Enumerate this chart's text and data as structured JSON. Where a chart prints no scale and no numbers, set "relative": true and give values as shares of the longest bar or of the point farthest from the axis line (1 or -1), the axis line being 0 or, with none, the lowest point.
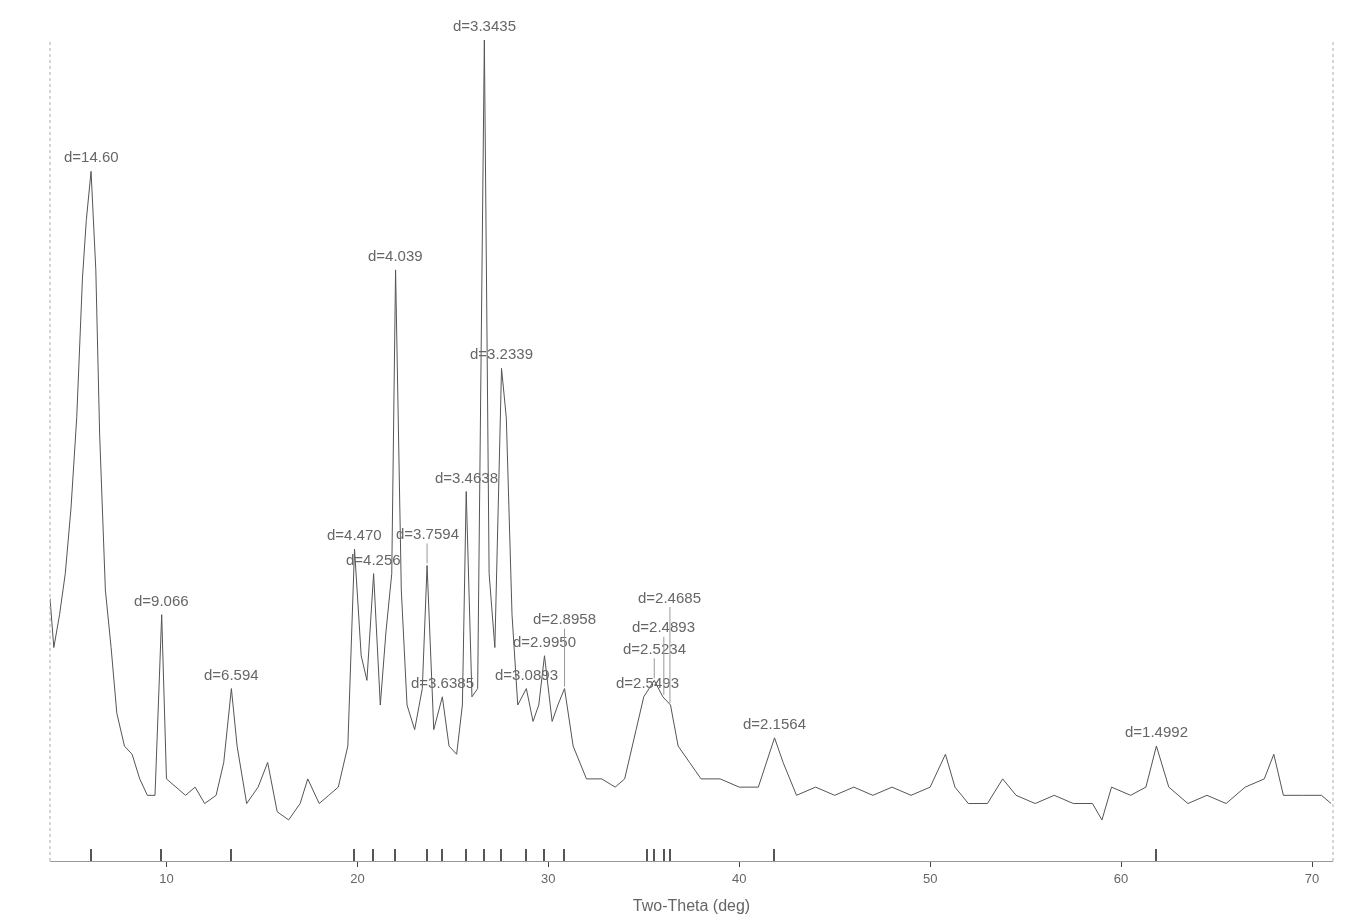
{
  "chart_data": {
    "type": "line",
    "relative": true,
    "xlabel": "Two-Theta (deg)",
    "xlim": [
      3.9,
      71.1
    ],
    "xticks": [
      10,
      20,
      30,
      40,
      50,
      60,
      70
    ],
    "marker": "none",
    "line_style": "solid",
    "series": [
      {
        "color": "#555555",
        "x": [
          3.9,
          4.1,
          4.4,
          4.7,
          5.0,
          5.3,
          5.6,
          5.8,
          6.05,
          6.3,
          6.5,
          6.8,
          7.1,
          7.4,
          7.8,
          8.2,
          8.6,
          9.0,
          9.4,
          9.75,
          10.0,
          10.5,
          11.0,
          11.5,
          12.0,
          12.6,
          13.0,
          13.4,
          13.7,
          14.2,
          14.8,
          15.3,
          15.8,
          16.4,
          17.0,
          17.4,
          18.0,
          18.5,
          19.0,
          19.5,
          19.85,
          20.2,
          20.5,
          20.85,
          21.2,
          21.5,
          21.8,
          22.0,
          22.3,
          22.6,
          23.0,
          23.4,
          23.65,
          24.0,
          24.45,
          24.8,
          25.2,
          25.5,
          25.7,
          26.0,
          26.3,
          26.65,
          26.9,
          27.2,
          27.55,
          27.8,
          28.1,
          28.4,
          28.85,
          29.2,
          29.5,
          29.8,
          30.2,
          30.5,
          30.85,
          31.3,
          32.0,
          32.8,
          33.5,
          34.0,
          34.6,
          35.0,
          35.55,
          36.0,
          36.4,
          36.8,
          37.4,
          38.0,
          39.0,
          40.0,
          41.0,
          41.85,
          42.3,
          43.0,
          44.0,
          45.0,
          46.0,
          47.0,
          48.0,
          49.0,
          50.0,
          50.8,
          51.3,
          52.0,
          53.0,
          53.8,
          54.5,
          55.5,
          56.5,
          57.5,
          58.5,
          59.0,
          59.5,
          60.5,
          61.3,
          61.85,
          62.5,
          63.5,
          64.5,
          65.5,
          66.5,
          67.5,
          68.0,
          68.5,
          69.5,
          70.5,
          71.0
        ],
        "values": [
          0.32,
          0.26,
          0.3,
          0.35,
          0.43,
          0.54,
          0.71,
          0.78,
          0.84,
          0.72,
          0.52,
          0.33,
          0.26,
          0.18,
          0.14,
          0.13,
          0.1,
          0.08,
          0.08,
          0.3,
          0.1,
          0.09,
          0.08,
          0.09,
          0.07,
          0.08,
          0.12,
          0.21,
          0.14,
          0.07,
          0.09,
          0.12,
          0.06,
          0.05,
          0.07,
          0.1,
          0.07,
          0.08,
          0.09,
          0.14,
          0.38,
          0.25,
          0.22,
          0.35,
          0.19,
          0.28,
          0.35,
          0.72,
          0.33,
          0.19,
          0.16,
          0.21,
          0.36,
          0.16,
          0.2,
          0.14,
          0.13,
          0.19,
          0.45,
          0.2,
          0.21,
          1.0,
          0.35,
          0.26,
          0.6,
          0.54,
          0.3,
          0.19,
          0.21,
          0.17,
          0.19,
          0.25,
          0.17,
          0.19,
          0.21,
          0.14,
          0.1,
          0.1,
          0.09,
          0.1,
          0.16,
          0.2,
          0.22,
          0.2,
          0.19,
          0.14,
          0.12,
          0.1,
          0.1,
          0.09,
          0.09,
          0.15,
          0.12,
          0.08,
          0.09,
          0.08,
          0.09,
          0.08,
          0.09,
          0.08,
          0.09,
          0.13,
          0.09,
          0.07,
          0.07,
          0.1,
          0.08,
          0.07,
          0.08,
          0.07,
          0.07,
          0.05,
          0.09,
          0.08,
          0.09,
          0.14,
          0.09,
          0.07,
          0.08,
          0.07,
          0.09,
          0.1,
          0.13,
          0.08,
          0.08,
          0.08,
          0.07
        ]
      },
      {
        "type": "bar",
        "color": "#555555",
        "x": [
          6.05,
          9.75,
          13.4,
          19.85,
          20.85,
          22.0,
          23.65,
          24.45,
          25.7,
          26.65,
          27.55,
          28.85,
          29.8,
          30.85,
          35.18,
          35.55,
          36.05,
          36.37,
          41.85,
          61.85
        ],
        "values": [
          0.015,
          0.015,
          0.015,
          0.015,
          0.015,
          0.015,
          0.015,
          0.015,
          0.015,
          0.015,
          0.015,
          0.015,
          0.015,
          0.015,
          0.015,
          0.015,
          0.015,
          0.015,
          0.015,
          0.015
        ]
      }
    ],
    "annotations": [
      {
        "text": "d=14.60",
        "x": 6.05,
        "y": 0.84
      },
      {
        "text": "d=9.066",
        "x": 9.75,
        "y": 0.3
      },
      {
        "text": "d=6.594",
        "x": 13.4,
        "y": 0.21
      },
      {
        "text": "d=4.470",
        "x": 19.85,
        "y": 0.38
      },
      {
        "text": "d=4.256",
        "x": 20.85,
        "y": 0.35
      },
      {
        "text": "d=4.039",
        "x": 22.0,
        "y": 0.72
      },
      {
        "text": "d=3.7594",
        "x": 23.65,
        "y": 0.36
      },
      {
        "text": "d=3.6385",
        "x": 24.45,
        "y": 0.2
      },
      {
        "text": "d=3.4638",
        "x": 25.7,
        "y": 0.45
      },
      {
        "text": "d=3.3435",
        "x": 26.65,
        "y": 1.0
      },
      {
        "text": "d=3.2339",
        "x": 27.55,
        "y": 0.6
      },
      {
        "text": "d=3.0893",
        "x": 28.85,
        "y": 0.21
      },
      {
        "text": "d=2.9950",
        "x": 29.8,
        "y": 0.25
      },
      {
        "text": "d=2.8958",
        "x": 30.85,
        "y": 0.21
      },
      {
        "text": "d=2.5493",
        "x": 35.18,
        "y": 0.2
      },
      {
        "text": "d=2.5234",
        "x": 35.55,
        "y": 0.22
      },
      {
        "text": "d=2.4893",
        "x": 36.05,
        "y": 0.2
      },
      {
        "text": "d=2.4685",
        "x": 36.37,
        "y": 0.19
      },
      {
        "text": "d=2.1564",
        "x": 41.85,
        "y": 0.15
      },
      {
        "text": "d=1.4992",
        "x": 61.85,
        "y": 0.14
      }
    ]
  }
}
